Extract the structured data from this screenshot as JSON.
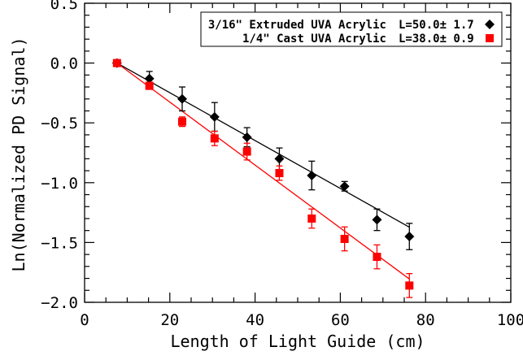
{
  "chart_data": {
    "type": "scatter",
    "xlabel": "Length of Light Guide (cm)",
    "ylabel": "Ln(Normalized PD Signal)",
    "xlim": [
      0,
      100
    ],
    "ylim": [
      -2.0,
      0.5
    ],
    "x_ticks": [
      0,
      20,
      40,
      60,
      80,
      100
    ],
    "x_tick_labels": [
      "0",
      "20",
      "40",
      "60",
      "80",
      "100"
    ],
    "y_ticks": [
      0.5,
      0.0,
      -0.5,
      -1.0,
      -1.5,
      -2.0
    ],
    "y_tick_labels": [
      "0.5",
      "0.0",
      "−0.5",
      "−1.0",
      "−1.5",
      "−2.0"
    ],
    "legend_position": "top-right",
    "series": [
      {
        "name": "3/16\" Extruded UVA Acrylic",
        "legend_value": "L=50.0± 1.7",
        "color": "#000000",
        "marker": "diamond",
        "x": [
          7.6,
          15.2,
          22.9,
          30.5,
          38.1,
          45.7,
          53.3,
          61.0,
          68.6,
          76.2
        ],
        "y": [
          0.0,
          -0.13,
          -0.3,
          -0.45,
          -0.62,
          -0.8,
          -0.94,
          -1.03,
          -1.31,
          -1.45
        ],
        "yerr": [
          0.0,
          0.06,
          0.1,
          0.12,
          0.08,
          0.09,
          0.12,
          0.04,
          0.09,
          0.11
        ],
        "fit": {
          "x": [
            7.6,
            76.2
          ],
          "y": [
            0.0,
            -1.372
          ]
        }
      },
      {
        "name": "1/4\" Cast UVA Acrylic",
        "legend_value": "L=38.0± 0.9",
        "color": "#ff0000",
        "marker": "square",
        "x": [
          7.6,
          15.2,
          22.9,
          30.5,
          38.1,
          45.7,
          53.3,
          61.0,
          68.6,
          76.2
        ],
        "y": [
          0.0,
          -0.19,
          -0.49,
          -0.63,
          -0.74,
          -0.92,
          -1.3,
          -1.47,
          -1.62,
          -1.86
        ],
        "yerr": [
          0.0,
          0.03,
          0.04,
          0.06,
          0.07,
          0.06,
          0.08,
          0.1,
          0.1,
          0.1
        ],
        "fit": {
          "x": [
            7.6,
            76.2
          ],
          "y": [
            0.0,
            -1.805
          ]
        }
      }
    ]
  }
}
